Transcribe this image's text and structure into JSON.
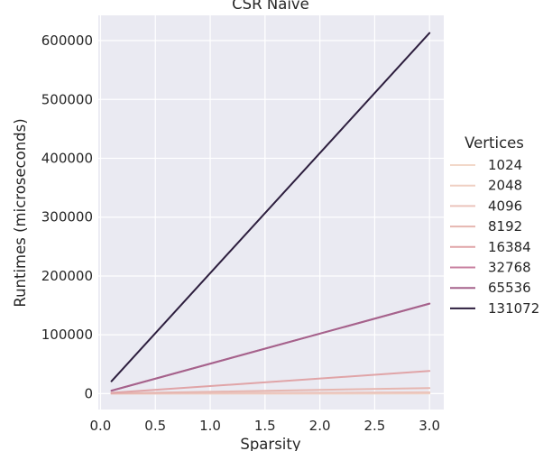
{
  "chart_data": {
    "type": "line",
    "title": "CSR Naive",
    "xlabel": "Sparsity",
    "ylabel": "Runtimes (microseconds)",
    "xlim": [
      -0.02,
      3.13
    ],
    "ylim": [
      -27000,
      643000
    ],
    "xticks": [
      0.0,
      0.5,
      1.0,
      1.5,
      2.0,
      2.5,
      3.0
    ],
    "xtick_labels": [
      "0.0",
      "0.5",
      "1.0",
      "1.5",
      "2.0",
      "2.5",
      "3.0"
    ],
    "yticks": [
      0,
      100000,
      200000,
      300000,
      400000,
      500000,
      600000
    ],
    "ytick_labels": [
      "0",
      "100000",
      "200000",
      "300000",
      "400000",
      "500000",
      "600000"
    ],
    "grid": true,
    "legend_title": "Vertices",
    "legend_position": "right",
    "series": [
      {
        "name": "1024",
        "color": "#f2d8c9",
        "x": [
          0.1,
          3.0
        ],
        "y": [
          10,
          150
        ]
      },
      {
        "name": "2048",
        "color": "#efcfc2",
        "x": [
          0.1,
          3.0
        ],
        "y": [
          30,
          600
        ]
      },
      {
        "name": "4096",
        "color": "#ebc4bc",
        "x": [
          0.1,
          3.0
        ],
        "y": [
          90,
          2400
        ]
      },
      {
        "name": "8192",
        "color": "#e6b6b0",
        "x": [
          0.1,
          3.0
        ],
        "y": [
          300,
          9500
        ]
      },
      {
        "name": "16384",
        "color": "#e0a4a7",
        "x": [
          0.1,
          3.0
        ],
        "y": [
          1300,
          38500
        ]
      },
      {
        "name": "32768",
        "color": "#c880a0",
        "x": [
          0.1,
          3.0
        ],
        "y": [
          5000,
          153000
        ]
      },
      {
        "name": "65536",
        "color": "#a5628c",
        "x": [
          0.1,
          3.0
        ],
        "y": [
          5000,
          153000
        ]
      },
      {
        "name": "131072",
        "color": "#2d1e3e",
        "x": [
          0.1,
          3.0
        ],
        "y": [
          21000,
          613000
        ]
      }
    ]
  }
}
